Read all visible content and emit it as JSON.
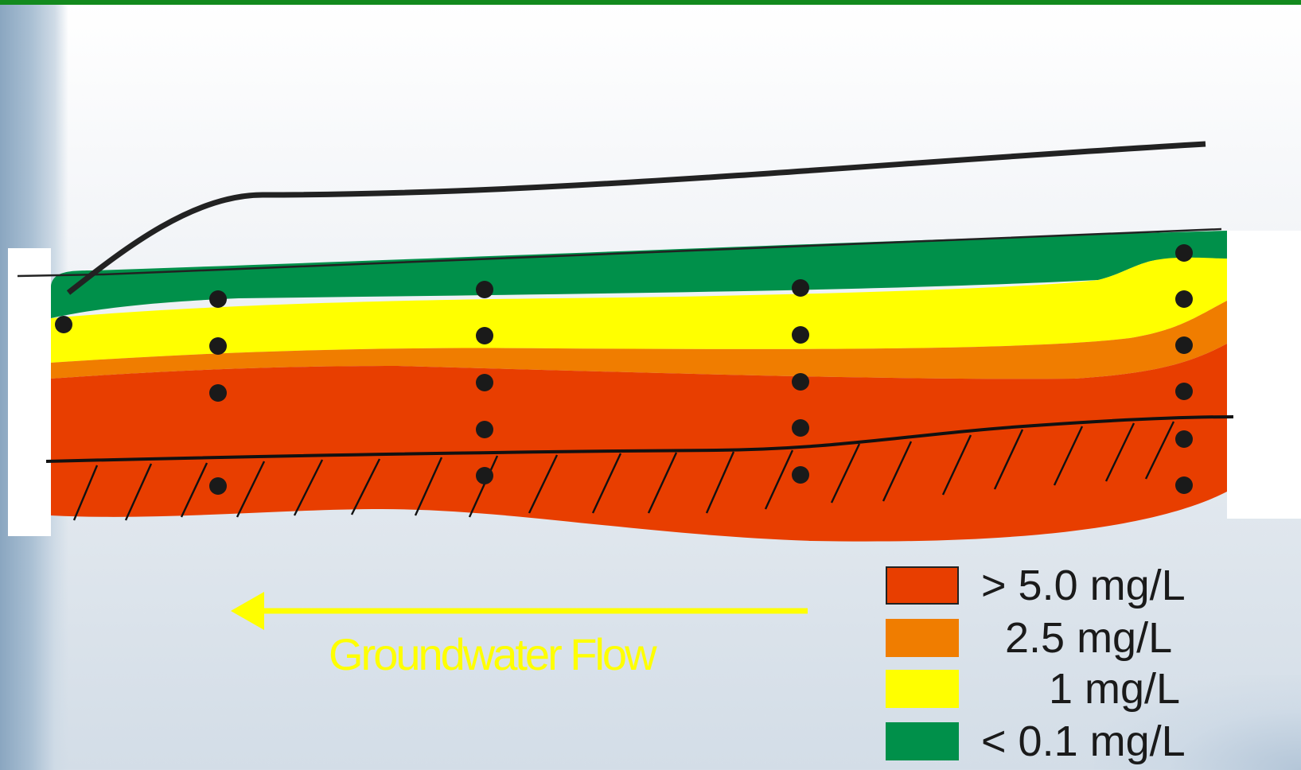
{
  "flow_arrow": {
    "label": "Groundwater Flow",
    "color": "#ffff00",
    "direction": "left"
  },
  "legend": [
    {
      "label": "> 5.0 mg/L",
      "color": "#e83e00",
      "outlined": true
    },
    {
      "label": "2.5 mg/L",
      "color": "#f07d00"
    },
    {
      "label": "1 mg/L",
      "color": "#ffff00"
    },
    {
      "label": "< 0.1 mg/L",
      "color": "#00904a"
    }
  ],
  "colors": {
    "header_bar": "#138a1e",
    "plume_high": "#e83e00",
    "plume_mid": "#f07d00",
    "plume_low": "#ffff00",
    "plume_trace": "#00904a",
    "sample_point": "#1a1a1a"
  }
}
